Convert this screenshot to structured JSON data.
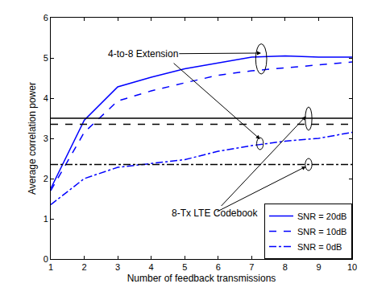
{
  "chart_data": {
    "type": "line",
    "x_label": "Number of feedback transmissions",
    "y_label": "Average correlation power",
    "x": [
      1,
      2,
      3,
      4,
      5,
      6,
      7,
      8,
      9,
      10
    ],
    "series": [
      {
        "name": "SNR = 20dB",
        "color": "#0000ff",
        "line_style": "solid",
        "values": [
          1.75,
          3.45,
          4.28,
          4.52,
          4.73,
          4.88,
          5.02,
          5.05,
          5.02,
          5.02
        ]
      },
      {
        "name": "SNR = 10dB",
        "color": "#0000ff",
        "line_style": "dash",
        "values": [
          1.7,
          3.15,
          3.93,
          4.18,
          4.38,
          4.57,
          4.68,
          4.75,
          4.82,
          4.9
        ]
      },
      {
        "name": "SNR = 0dB",
        "color": "#0000ff",
        "line_style": "dashdot",
        "values": [
          1.35,
          2.0,
          2.28,
          2.37,
          2.47,
          2.68,
          2.82,
          2.93,
          3.0,
          3.15
        ]
      }
    ],
    "reference_lines": [
      {
        "name": "SNR = 20dB",
        "color": "#000000",
        "line_style": "solid",
        "value": 3.5
      },
      {
        "name": "SNR = 10dB",
        "color": "#000000",
        "line_style": "dash",
        "value": 3.35
      },
      {
        "name": "SNR = 0dB",
        "color": "#000000",
        "line_style": "dashdot",
        "value": 2.35
      }
    ],
    "annotations": [
      "4-to-8 Extension",
      "8-Tx LTE Codebook"
    ],
    "xlim": [
      1,
      10
    ],
    "xticks": [
      1,
      2,
      3,
      4,
      5,
      6,
      7,
      8,
      9,
      10
    ],
    "ylim": [
      0,
      6
    ],
    "yticks": [
      0,
      1,
      2,
      3,
      4,
      5,
      6
    ],
    "grid": false,
    "legend": "lower right"
  }
}
